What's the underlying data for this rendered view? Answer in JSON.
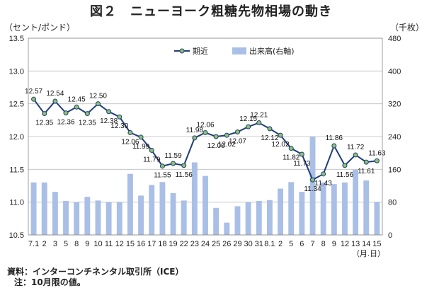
{
  "title": "図２　ニューヨーク粗糖先物相場の動き",
  "left_unit": "（セント/ポンド）",
  "right_unit": "（千枚）",
  "footnotes": {
    "source": "資料：インターコンチネンタル取引所（ICE）",
    "note": "注：10月限の値。"
  },
  "chart_data": {
    "type": "bar+line",
    "categories": [
      "7.1",
      "2",
      "3",
      "5",
      "8",
      "9",
      "10",
      "11",
      "12",
      "15",
      "16",
      "17",
      "18",
      "19",
      "22",
      "23",
      "24",
      "25",
      "26",
      "29",
      "30",
      "31",
      "8.1",
      "2",
      "5",
      "6",
      "7",
      "8",
      "9",
      "12",
      "13",
      "14",
      "15"
    ],
    "x_axis_unit": "（月.日）",
    "legend": {
      "line": "期近",
      "bar": "出来高(右軸)",
      "position": "top-center"
    },
    "series": [
      {
        "name": "期近",
        "type": "line",
        "axis": "left",
        "color": "#1f3d7a",
        "marker_color": "#8dc26f",
        "values": [
          12.57,
          12.35,
          12.54,
          12.36,
          12.45,
          12.35,
          12.5,
          12.38,
          12.3,
          12.06,
          11.99,
          11.79,
          11.55,
          11.59,
          11.56,
          11.98,
          12.06,
          12.0,
          12.02,
          12.07,
          12.15,
          12.21,
          12.12,
          12.02,
          11.82,
          11.73,
          11.34,
          11.43,
          11.86,
          11.56,
          11.72,
          11.61,
          11.63
        ],
        "labels_shown": [
          true,
          true,
          true,
          true,
          true,
          true,
          true,
          true,
          true,
          true,
          true,
          true,
          true,
          true,
          true,
          true,
          true,
          true,
          true,
          true,
          true,
          true,
          true,
          true,
          true,
          true,
          true,
          true,
          true,
          true,
          true,
          true,
          true
        ]
      },
      {
        "name": "出来高(右軸)",
        "type": "bar",
        "axis": "right",
        "color": "#a9bfe6",
        "values": [
          128,
          128,
          105,
          83,
          80,
          93,
          84,
          80,
          80,
          149,
          96,
          122,
          129,
          102,
          84,
          177,
          144,
          66,
          30,
          70,
          80,
          83,
          85,
          113,
          129,
          105,
          240,
          128,
          124,
          128,
          159,
          133,
          81
        ]
      }
    ],
    "y_left": {
      "min": 10.5,
      "max": 13.5,
      "ticks": [
        "10.5",
        "11.0",
        "11.5",
        "12.0",
        "12.5",
        "13.0",
        "13.5"
      ]
    },
    "y_right": {
      "min": 0,
      "max": 480,
      "ticks": [
        "0",
        "80",
        "160",
        "240",
        "320",
        "400",
        "480"
      ]
    },
    "grid": true
  }
}
